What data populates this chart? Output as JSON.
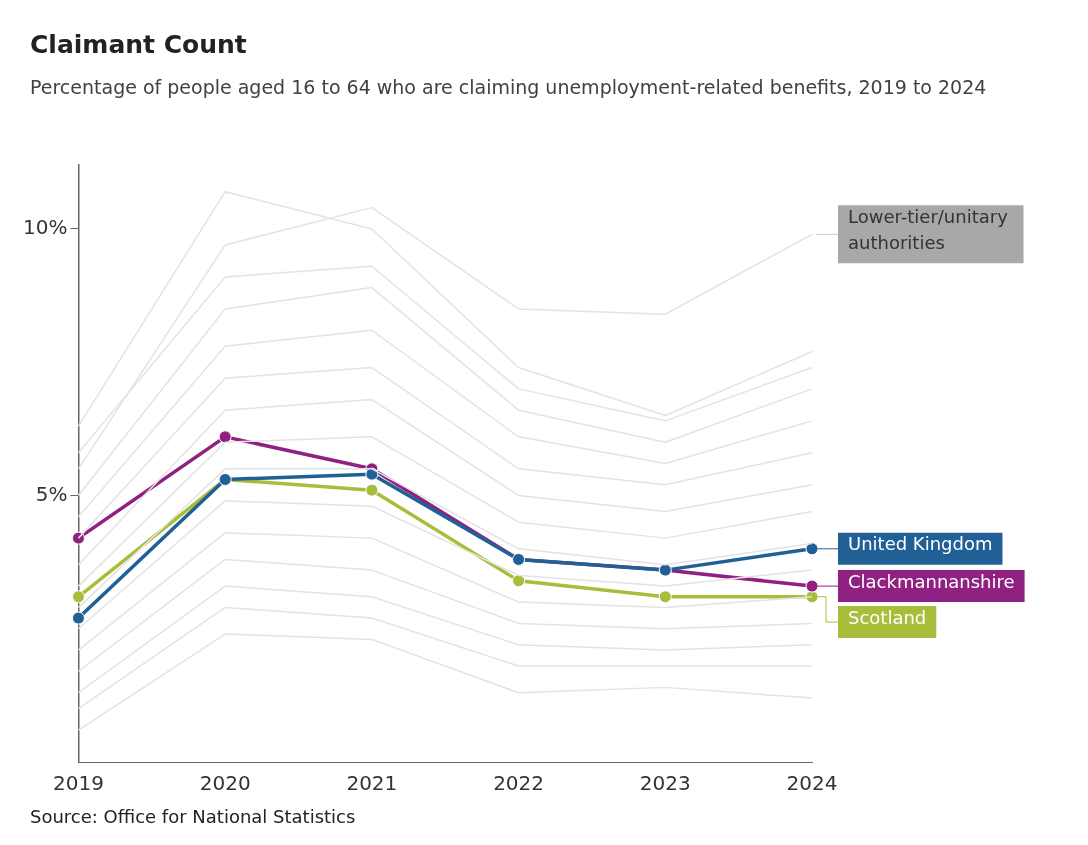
{
  "chart_data": {
    "type": "line",
    "title": "Claimant Count",
    "subtitle": "Percentage of people aged 16 to 64 who are claiming unemployment-related benefits, 2019 to 2024",
    "categories": [
      "2019",
      "2020",
      "2021",
      "2022",
      "2023",
      "2024"
    ],
    "ylim": [
      0,
      11.2
    ],
    "yticks": [
      {
        "value": 5,
        "label": "5%"
      },
      {
        "value": 10,
        "label": "10%"
      }
    ],
    "grid": false,
    "legend": "right",
    "series": [
      {
        "name": "Lower-tier/unitary authorities",
        "color": "#e3e3e3",
        "marker": "none",
        "values": [
          5.5,
          9.7,
          10.4,
          8.5,
          8.4,
          9.9
        ]
      },
      {
        "color": "#e3e3e3",
        "marker": "none",
        "values": [
          6.3,
          10.7,
          10.0,
          7.4,
          6.5,
          7.7
        ]
      },
      {
        "color": "#e3e3e3",
        "marker": "none",
        "values": [
          5.8,
          9.1,
          9.3,
          7.0,
          6.4,
          7.4
        ]
      },
      {
        "color": "#e3e3e3",
        "marker": "none",
        "values": [
          5.0,
          8.5,
          8.9,
          6.6,
          6.0,
          7.0
        ]
      },
      {
        "color": "#e3e3e3",
        "marker": "none",
        "values": [
          4.6,
          7.8,
          8.1,
          6.1,
          5.6,
          6.4
        ]
      },
      {
        "color": "#e3e3e3",
        "marker": "none",
        "values": [
          4.2,
          7.2,
          7.4,
          5.5,
          5.2,
          5.8
        ]
      },
      {
        "color": "#e3e3e3",
        "marker": "none",
        "values": [
          3.7,
          6.6,
          6.8,
          5.0,
          4.7,
          5.2
        ]
      },
      {
        "color": "#e3e3e3",
        "marker": "none",
        "values": [
          3.3,
          6.0,
          6.1,
          4.5,
          4.2,
          4.7
        ]
      },
      {
        "color": "#e3e3e3",
        "marker": "none",
        "values": [
          2.9,
          5.5,
          5.5,
          4.0,
          3.7,
          4.1
        ]
      },
      {
        "color": "#e3e3e3",
        "marker": "none",
        "values": [
          2.5,
          4.9,
          4.8,
          3.5,
          3.3,
          3.6
        ]
      },
      {
        "color": "#e3e3e3",
        "marker": "none",
        "values": [
          2.1,
          4.3,
          4.2,
          3.0,
          2.9,
          3.1
        ]
      },
      {
        "color": "#e3e3e3",
        "marker": "none",
        "values": [
          1.7,
          3.8,
          3.6,
          2.6,
          2.5,
          2.6
        ]
      },
      {
        "color": "#e3e3e3",
        "marker": "none",
        "values": [
          1.3,
          3.3,
          3.1,
          2.2,
          2.1,
          2.2
        ]
      },
      {
        "color": "#e3e3e3",
        "marker": "none",
        "values": [
          1.0,
          2.9,
          2.7,
          1.8,
          1.8,
          1.8
        ]
      },
      {
        "color": "#e3e3e3",
        "marker": "none",
        "values": [
          0.6,
          2.4,
          2.3,
          1.3,
          1.4,
          1.2
        ]
      },
      {
        "name": "United Kingdom",
        "color": "#206095",
        "marker": "circle",
        "values": [
          2.7,
          5.3,
          5.4,
          3.8,
          3.6,
          4.0
        ]
      },
      {
        "name": "Clackmannanshire",
        "color": "#902082",
        "marker": "circle",
        "values": [
          4.2,
          6.1,
          5.5,
          3.8,
          3.6,
          3.3
        ]
      },
      {
        "name": "Scotland",
        "color": "#a8bd3a",
        "marker": "circle",
        "values": [
          3.1,
          5.3,
          5.1,
          3.4,
          3.1,
          3.1
        ]
      }
    ],
    "annotations": [
      "Source: Office for National Statistics"
    ]
  }
}
